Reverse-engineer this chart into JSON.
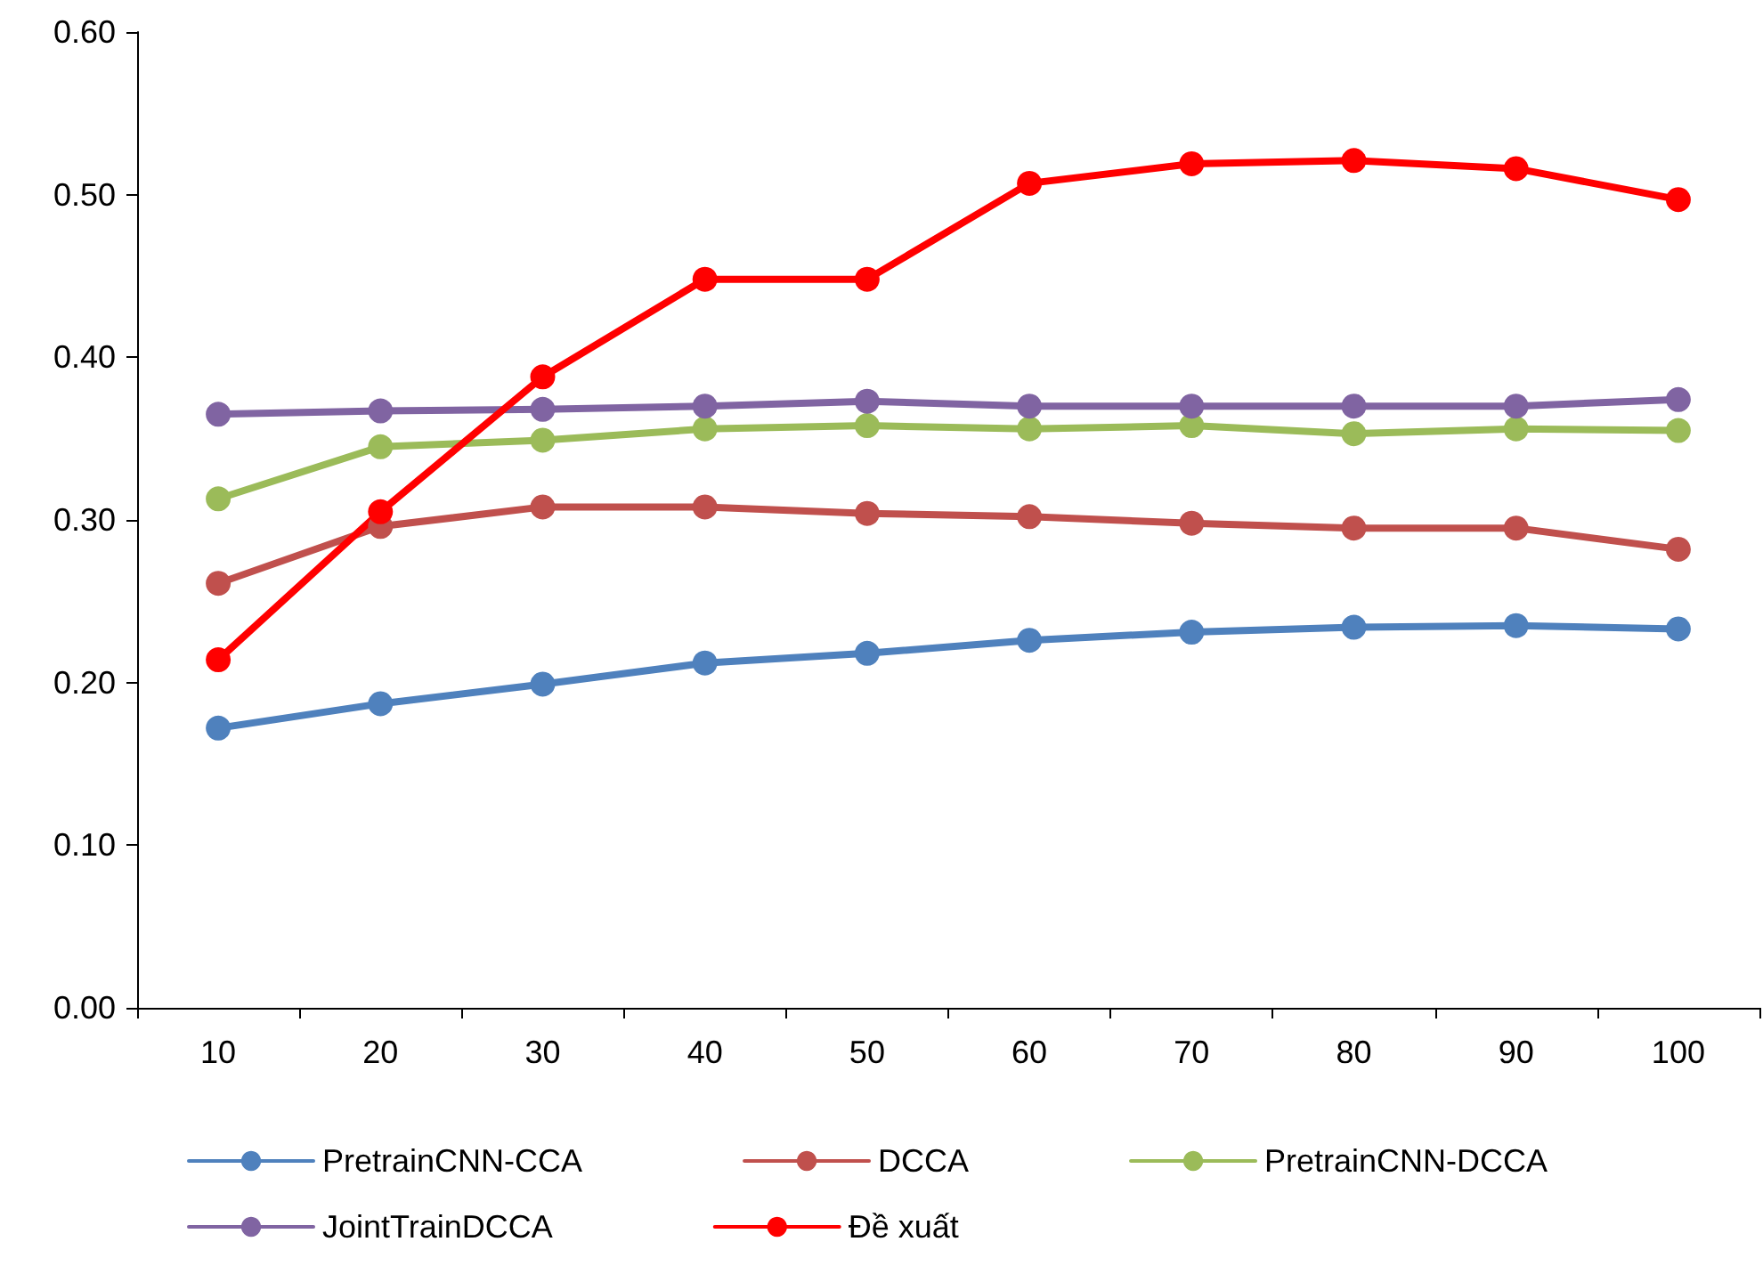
{
  "chart_data": {
    "type": "line",
    "categories": [
      "10",
      "20",
      "30",
      "40",
      "50",
      "60",
      "70",
      "80",
      "90",
      "100"
    ],
    "series": [
      {
        "name": "PretrainCNN-CCA",
        "color": "#4f81bd",
        "values": [
          0.172,
          0.187,
          0.199,
          0.212,
          0.218,
          0.226,
          0.231,
          0.234,
          0.235,
          0.233
        ]
      },
      {
        "name": "DCCA",
        "color": "#c0504d",
        "values": [
          0.261,
          0.296,
          0.308,
          0.308,
          0.304,
          0.302,
          0.298,
          0.295,
          0.295,
          0.282
        ]
      },
      {
        "name": "PretrainCNN-DCCA",
        "color": "#9bbb59",
        "values": [
          0.313,
          0.345,
          0.349,
          0.356,
          0.358,
          0.356,
          0.358,
          0.353,
          0.356,
          0.355
        ]
      },
      {
        "name": "JointTrainDCCA",
        "color": "#8064a2",
        "values": [
          0.365,
          0.367,
          0.368,
          0.37,
          0.373,
          0.37,
          0.37,
          0.37,
          0.37,
          0.374
        ]
      },
      {
        "name": "Đề xuất",
        "color": "#ff0000",
        "values": [
          0.214,
          0.305,
          0.388,
          0.448,
          0.448,
          0.507,
          0.519,
          0.521,
          0.516,
          0.497
        ]
      }
    ],
    "ylim": [
      0,
      0.6
    ],
    "yticks": [
      {
        "value": 0,
        "label": "0.00"
      },
      {
        "value": 0.1,
        "label": "0.10"
      },
      {
        "value": 0.2,
        "label": "0.20"
      },
      {
        "value": 0.3,
        "label": "0.30"
      },
      {
        "value": 0.4,
        "label": "0.40"
      },
      {
        "value": 0.5,
        "label": "0.50"
      },
      {
        "value": 0.6,
        "label": "0.60"
      }
    ],
    "grid": false,
    "legend": "bottom",
    "marker": "circle",
    "line_style": "solid"
  }
}
